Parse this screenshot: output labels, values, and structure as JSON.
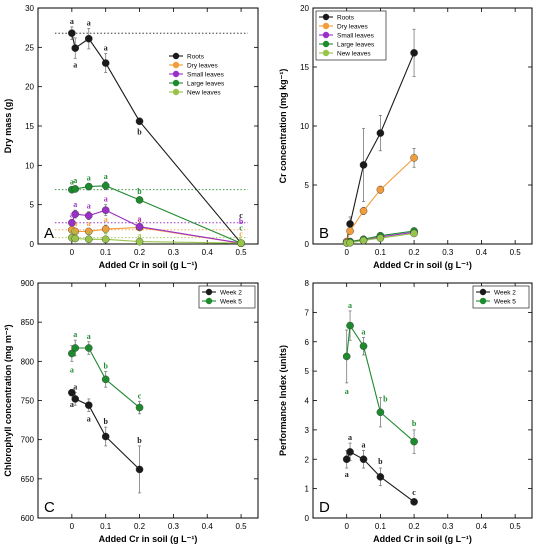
{
  "colors": {
    "roots": "#1a1a1a",
    "dry_leaves": "#f39c3a",
    "small_leaves": "#9b30c8",
    "large_leaves": "#1e8a2e",
    "new_leaves": "#98c44a",
    "week2": "#1a1a1a",
    "week5": "#1e8a2e"
  },
  "chart_data": [
    {
      "panel": "A",
      "type": "line",
      "xlabel": "Added Cr in soil (g L⁻¹)",
      "ylabel": "Dry mass (g)",
      "xlim": [
        -0.1,
        0.55
      ],
      "ylim": [
        0,
        30
      ],
      "xticks": [
        0,
        0.1,
        0.2,
        0.3,
        0.4,
        0.5
      ],
      "yticks": [
        0,
        5,
        10,
        15,
        20,
        25,
        30
      ],
      "legend_position": "upper-right",
      "x": [
        0,
        0.01,
        0.05,
        0.1,
        0.2,
        0.5
      ],
      "series": [
        {
          "name": "Roots",
          "color_key": "roots",
          "y": [
            26.8,
            24.9,
            26.1,
            23.0,
            15.6,
            0.1
          ],
          "err": [
            0.8,
            1.3,
            1.3,
            1.2,
            0,
            0
          ],
          "letters": [
            "a",
            "a",
            "a",
            "a",
            "b",
            "c"
          ],
          "ref_line": 26.8
        },
        {
          "name": "Dry leaves",
          "color_key": "dry_leaves",
          "y": [
            1.8,
            1.6,
            1.6,
            1.9,
            2.1,
            0.1
          ],
          "err": [
            0.3,
            0.3,
            0.3,
            0.5,
            0.3,
            0
          ],
          "letters": [
            "a",
            "a",
            "a",
            "a",
            "a",
            "c"
          ],
          "ref_line": 1.8
        },
        {
          "name": "Small leaves",
          "color_key": "small_leaves",
          "y": [
            2.7,
            3.8,
            3.6,
            4.3,
            2.2,
            0.1
          ],
          "err": [
            0.3,
            0.5,
            0.5,
            0.7,
            0.3,
            0
          ],
          "letters": [
            "a",
            "a",
            "a",
            "a",
            "a",
            "b"
          ],
          "ref_line": 2.7
        },
        {
          "name": "Large leaves",
          "color_key": "large_leaves",
          "y": [
            6.9,
            7.0,
            7.3,
            7.4,
            5.6,
            0.1
          ],
          "err": [
            0.3,
            0.4,
            0.4,
            0.5,
            0.3,
            0
          ],
          "letters": [
            "a",
            "a",
            "a",
            "a",
            "b",
            "c"
          ],
          "ref_line": 6.9
        },
        {
          "name": "New leaves",
          "color_key": "new_leaves",
          "y": [
            0.8,
            0.7,
            0.6,
            0.6,
            0.3,
            0.1
          ],
          "err": [
            0.2,
            0.2,
            0.2,
            0.2,
            0.1,
            0
          ],
          "letters": [
            "a",
            "a",
            "a",
            "a",
            "a",
            "b"
          ],
          "ref_line": 0.8
        }
      ]
    },
    {
      "panel": "B",
      "type": "line",
      "xlabel": "Added Cr in soil (g L⁻¹)",
      "ylabel": "Cr concentration (mg kg⁻¹)",
      "xlim": [
        -0.1,
        0.55
      ],
      "ylim": [
        0,
        20
      ],
      "xticks": [
        0,
        0.1,
        0.2,
        0.3,
        0.4,
        0.5
      ],
      "yticks": [
        0,
        5,
        10,
        15,
        20
      ],
      "legend_position": "upper-left",
      "x": [
        0,
        0.01,
        0.05,
        0.1,
        0.2
      ],
      "series": [
        {
          "name": "Roots",
          "color_key": "roots",
          "y": [
            0.2,
            1.7,
            6.7,
            9.4,
            16.2
          ],
          "err": [
            0.1,
            0.6,
            3.1,
            1.5,
            2.0
          ]
        },
        {
          "name": "Dry leaves",
          "color_key": "dry_leaves",
          "y": [
            0.2,
            1.1,
            2.8,
            4.6,
            7.3
          ],
          "err": [
            0.1,
            0.2,
            0.3,
            0.3,
            0.8
          ]
        },
        {
          "name": "Small leaves",
          "color_key": "small_leaves",
          "y": [
            0.1,
            0.2,
            0.3,
            0.6,
            1.0
          ],
          "err": [
            0.05,
            0.1,
            0.1,
            0.1,
            0.2
          ]
        },
        {
          "name": "Large leaves",
          "color_key": "large_leaves",
          "y": [
            0.1,
            0.2,
            0.4,
            0.7,
            1.1
          ],
          "err": [
            0.05,
            0.1,
            0.1,
            0.1,
            0.2
          ]
        },
        {
          "name": "New leaves",
          "color_key": "new_leaves",
          "y": [
            0.1,
            0.1,
            0.3,
            0.5,
            0.9
          ],
          "err": [
            0.05,
            0.05,
            0.1,
            0.1,
            0.2
          ]
        }
      ]
    },
    {
      "panel": "C",
      "type": "line",
      "xlabel": "Added Cr in soil (g L⁻¹)",
      "ylabel": "Chlorophyll concentration (mg m⁻²)",
      "xlim": [
        -0.1,
        0.55
      ],
      "ylim": [
        600,
        900
      ],
      "xticks": [
        0,
        0.1,
        0.2,
        0.3,
        0.4,
        0.5
      ],
      "yticks": [
        600,
        650,
        700,
        750,
        800,
        850,
        900
      ],
      "legend_position": "upper-right",
      "x": [
        0,
        0.01,
        0.05,
        0.1,
        0.2
      ],
      "series": [
        {
          "name": "Week 2",
          "color_key": "week2",
          "y": [
            760,
            752,
            744,
            704,
            662
          ],
          "err": [
            4,
            8,
            8,
            12,
            30
          ],
          "letters": [
            "a",
            "a",
            "a",
            "b",
            "b"
          ]
        },
        {
          "name": "Week 5",
          "color_key": "week5",
          "y": [
            810,
            817,
            817,
            777,
            741
          ],
          "err": [
            10,
            10,
            8,
            10,
            8
          ],
          "letters": [
            "a",
            "a",
            "a",
            "b",
            "c"
          ]
        }
      ]
    },
    {
      "panel": "D",
      "type": "line",
      "xlabel": "Added Cr in soil (g L⁻¹)",
      "ylabel": "Performance Index (units)",
      "xlim": [
        -0.1,
        0.55
      ],
      "ylim": [
        0,
        8
      ],
      "xticks": [
        0,
        0.1,
        0.2,
        0.3,
        0.4,
        0.5
      ],
      "yticks": [
        0,
        1,
        2,
        3,
        4,
        5,
        6,
        7,
        8
      ],
      "legend_position": "upper-right",
      "x": [
        0,
        0.01,
        0.05,
        0.1,
        0.2
      ],
      "series": [
        {
          "name": "Week 2",
          "color_key": "week2",
          "y": [
            2.0,
            2.25,
            2.0,
            1.4,
            0.55
          ],
          "err": [
            0.3,
            0.3,
            0.3,
            0.3,
            0.1
          ],
          "letters": [
            "a",
            "a",
            "a",
            "b",
            "c"
          ]
        },
        {
          "name": "Week 5",
          "color_key": "week5",
          "y": [
            5.5,
            6.55,
            5.85,
            3.6,
            2.6
          ],
          "err": [
            0.9,
            0.5,
            0.3,
            0.5,
            0.4
          ],
          "letters": [
            "a",
            "a",
            "a",
            "b",
            "b"
          ]
        }
      ]
    }
  ]
}
